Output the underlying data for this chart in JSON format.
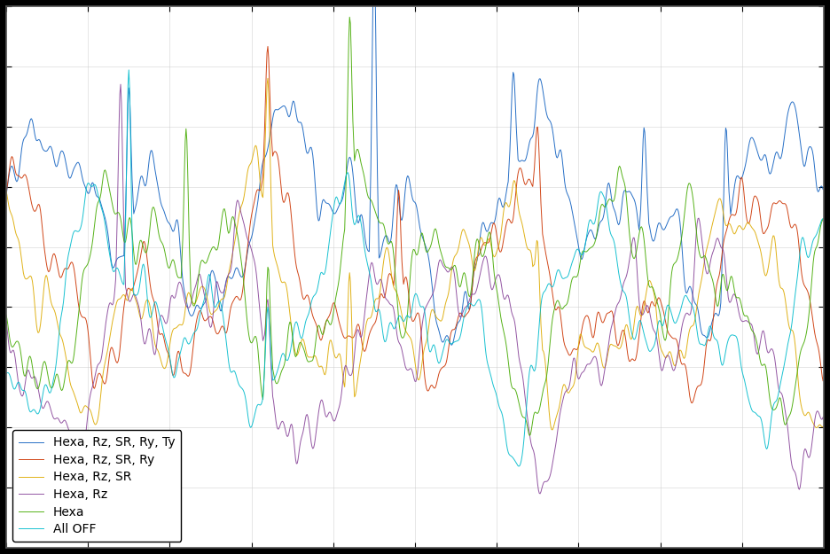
{
  "title": "",
  "xlabel": "",
  "ylabel": "",
  "legend_entries": [
    "Hexa, Rz, SR, Ry, Ty",
    "Hexa, Rz, SR, Ry",
    "Hexa, Rz, SR",
    "Hexa, Rz",
    "Hexa",
    "All OFF"
  ],
  "colors": [
    "#1f77b4",
    "#d62728",
    "#ff7f0e",
    "#9467bd",
    "#2ca02c",
    "#17becf"
  ],
  "line_colors": [
    "#1060c0",
    "#cc3300",
    "#ddaa00",
    "#884499",
    "#44aa00",
    "#00bbcc"
  ],
  "background_color": "#000000",
  "plot_bg_color": "#ffffff",
  "grid_color": "#cccccc",
  "n_points": 1000,
  "ylim": [
    -130,
    -40
  ],
  "xlim": [
    0,
    1000
  ],
  "seed": 42
}
